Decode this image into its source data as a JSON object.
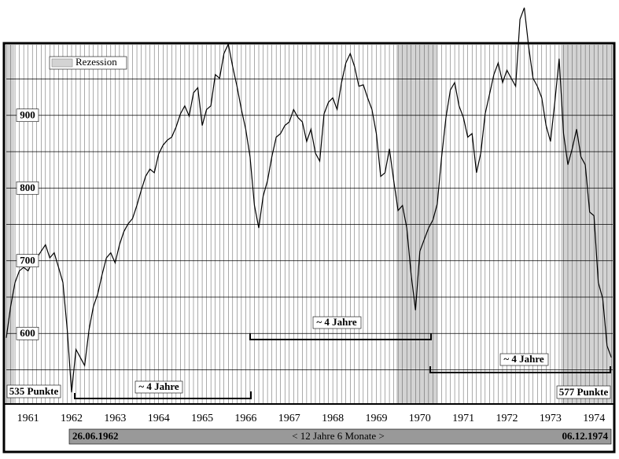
{
  "chart_data": {
    "type": "line",
    "x": [
      1961.0,
      1961.1,
      1961.2,
      1961.3,
      1961.4,
      1961.5,
      1961.6,
      1961.7,
      1961.8,
      1961.9,
      1962.0,
      1962.1,
      1962.2,
      1962.3,
      1962.4,
      1962.5,
      1962.6,
      1962.7,
      1962.8,
      1962.9,
      1963.0,
      1963.1,
      1963.2,
      1963.3,
      1963.4,
      1963.5,
      1963.6,
      1963.7,
      1963.8,
      1963.9,
      1964.0,
      1964.1,
      1964.2,
      1964.3,
      1964.4,
      1964.5,
      1964.6,
      1964.7,
      1964.8,
      1964.9,
      1965.0,
      1965.1,
      1965.2,
      1965.3,
      1965.4,
      1965.5,
      1965.6,
      1965.7,
      1965.8,
      1965.9,
      1966.0,
      1966.1,
      1966.2,
      1966.3,
      1966.4,
      1966.5,
      1966.6,
      1966.7,
      1966.8,
      1966.9,
      1967.0,
      1967.1,
      1967.2,
      1967.3,
      1967.4,
      1967.5,
      1967.6,
      1967.7,
      1967.8,
      1967.9,
      1968.0,
      1968.1,
      1968.2,
      1968.3,
      1968.4,
      1968.5,
      1968.6,
      1968.7,
      1968.8,
      1968.9,
      1969.0,
      1969.1,
      1969.2,
      1969.3,
      1969.4,
      1969.5,
      1969.6,
      1969.7,
      1969.8,
      1969.9,
      1970.0,
      1970.1,
      1970.2,
      1970.3,
      1970.4,
      1970.5,
      1970.6,
      1970.7,
      1970.8,
      1970.9,
      1971.0,
      1971.1,
      1971.2,
      1971.3,
      1971.4,
      1971.5,
      1971.6,
      1971.7,
      1971.8,
      1971.9,
      1972.0,
      1972.1,
      1972.2,
      1972.3,
      1972.4,
      1972.5,
      1972.6,
      1972.7,
      1972.8,
      1972.9,
      1973.0,
      1973.1,
      1973.2,
      1973.3,
      1973.4,
      1973.5,
      1973.6,
      1973.7,
      1973.8,
      1973.9,
      1974.0,
      1974.1,
      1974.2,
      1974.3,
      1974.4,
      1974.5,
      1974.6,
      1974.7,
      1974.8,
      1974.9
    ],
    "values": [
      594,
      637,
      670,
      686,
      691,
      686,
      699,
      704,
      713,
      722,
      704,
      711,
      691,
      670,
      605,
      519,
      578,
      567,
      556,
      605,
      637,
      654,
      681,
      704,
      711,
      697,
      722,
      740,
      751,
      758,
      776,
      797,
      816,
      826,
      821,
      847,
      859,
      866,
      870,
      884,
      902,
      913,
      899,
      931,
      938,
      886,
      908,
      913,
      956,
      951,
      985,
      998,
      967,
      940,
      908,
      881,
      843,
      776,
      745,
      789,
      810,
      843,
      870,
      875,
      886,
      891,
      908,
      897,
      891,
      864,
      881,
      848,
      837,
      902,
      918,
      924,
      908,
      945,
      972,
      985,
      967,
      940,
      942,
      924,
      908,
      875,
      816,
      821,
      854,
      810,
      769,
      776,
      745,
      681,
      632,
      713,
      729,
      745,
      756,
      778,
      843,
      897,
      935,
      945,
      913,
      897,
      870,
      875,
      821,
      848,
      902,
      929,
      956,
      972,
      945,
      962,
      951,
      940,
      1032,
      1048,
      994,
      951,
      940,
      924,
      886,
      864,
      918,
      978,
      875,
      832,
      854,
      881,
      843,
      832,
      767,
      762,
      670,
      648,
      583,
      567
    ],
    "color": "#000000",
    "xlim": [
      1961,
      1974.93
    ],
    "ylim": [
      503,
      997
    ],
    "xticks": [
      {
        "value": 1961.5,
        "label": "1961"
      },
      {
        "value": 1962.5,
        "label": "1962"
      },
      {
        "value": 1963.5,
        "label": "1963"
      },
      {
        "value": 1964.5,
        "label": "1964"
      },
      {
        "value": 1965.5,
        "label": "1965"
      },
      {
        "value": 1966.5,
        "label": "1966"
      },
      {
        "value": 1967.5,
        "label": "1967"
      },
      {
        "value": 1968.5,
        "label": "1968"
      },
      {
        "value": 1969.5,
        "label": "1969"
      },
      {
        "value": 1970.5,
        "label": "1970"
      },
      {
        "value": 1971.5,
        "label": "1971"
      },
      {
        "value": 1972.5,
        "label": "1972"
      },
      {
        "value": 1973.5,
        "label": "1973"
      },
      {
        "value": 1974.5,
        "label": "1974"
      }
    ],
    "yticks": [
      600,
      700,
      800,
      900
    ],
    "ygrid": [
      550,
      650,
      750,
      850,
      950
    ],
    "grid": true,
    "recession_label": "Rezession",
    "recession_color": "#d3d3d3",
    "recessions": [
      [
        1961,
        1961.18
      ],
      [
        1969.96,
        1970.9
      ],
      [
        1973.74,
        1974.93
      ]
    ],
    "low_start": "535 Punkte",
    "low_end": "577 Punkte",
    "cycles": [
      "~ 4 Jahre",
      "~ 4 Jahre",
      "~ 4 Jahre"
    ],
    "start_date": "26.06.1962",
    "span": "< 12 Jahre 6 Monate >",
    "end_date": "06.12.1974"
  }
}
